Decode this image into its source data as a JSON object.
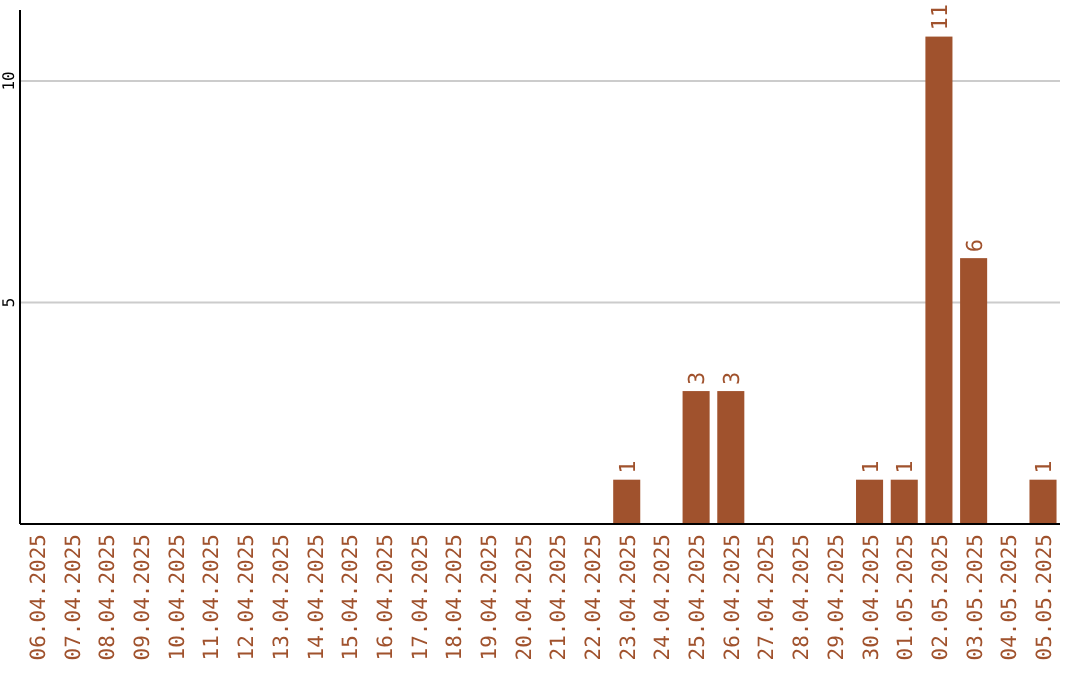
{
  "chart_data": {
    "type": "bar",
    "categories": [
      "06.04.2025",
      "07.04.2025",
      "08.04.2025",
      "09.04.2025",
      "10.04.2025",
      "11.04.2025",
      "12.04.2025",
      "13.04.2025",
      "14.04.2025",
      "15.04.2025",
      "16.04.2025",
      "17.04.2025",
      "18.04.2025",
      "19.04.2025",
      "20.04.2025",
      "21.04.2025",
      "22.04.2025",
      "23.04.2025",
      "24.04.2025",
      "25.04.2025",
      "26.04.2025",
      "27.04.2025",
      "28.04.2025",
      "29.04.2025",
      "30.04.2025",
      "01.05.2025",
      "02.05.2025",
      "03.05.2025",
      "04.05.2025",
      "05.05.2025"
    ],
    "values": [
      0,
      0,
      0,
      0,
      0,
      0,
      0,
      0,
      0,
      0,
      0,
      0,
      0,
      0,
      0,
      0,
      0,
      1,
      0,
      3,
      3,
      0,
      0,
      0,
      1,
      1,
      11,
      6,
      0,
      1
    ],
    "value_labels": [
      null,
      null,
      null,
      null,
      null,
      null,
      null,
      null,
      null,
      null,
      null,
      null,
      null,
      null,
      null,
      null,
      null,
      "1",
      null,
      "3",
      "3",
      null,
      null,
      null,
      "1",
      "1",
      "11",
      "6",
      null,
      "1"
    ],
    "color": "#a0522d",
    "ylim": [
      0,
      11.6
    ],
    "yticks": [
      5,
      10
    ],
    "grid": "y"
  }
}
